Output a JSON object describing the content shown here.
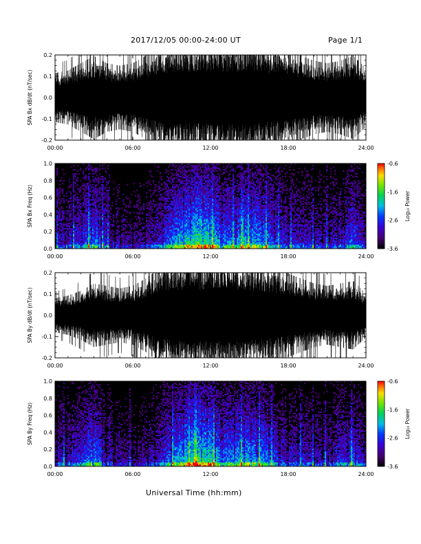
{
  "header": {
    "title": "2017/12/05  00:00-24:00 UT",
    "page": "Page 1/1"
  },
  "xaxis_title": "Universal Time (hh:mm)",
  "colors": {
    "background": "#ffffff",
    "trace": "#000000",
    "spectrogram_background": "#000000"
  },
  "chart_data": [
    {
      "type": "line",
      "ylabel": "SPA Bx dB/dt (nT/sec)",
      "xlim": [
        "00:00",
        "24:00"
      ],
      "ylim": [
        -0.2,
        0.2
      ],
      "x_ticks": [
        "00:00",
        "06:00",
        "12:00",
        "18:00",
        "24:00"
      ],
      "y_ticks": [
        "-0.2",
        "-0.1",
        "0.0",
        "0.1",
        "0.2"
      ],
      "y_tick_values": [
        -0.2,
        -0.1,
        0.0,
        0.1,
        0.2
      ],
      "envelope": {
        "hours": [
          0,
          1,
          2,
          3,
          4,
          5,
          6,
          7,
          8,
          9,
          10,
          11,
          12,
          13,
          14,
          15,
          16,
          17,
          18,
          19,
          20,
          21,
          22,
          23,
          24
        ],
        "amplitude": [
          0.1,
          0.11,
          0.14,
          0.17,
          0.14,
          0.13,
          0.14,
          0.17,
          0.2,
          0.21,
          0.22,
          0.22,
          0.22,
          0.22,
          0.22,
          0.22,
          0.21,
          0.2,
          0.19,
          0.17,
          0.15,
          0.14,
          0.15,
          0.17,
          0.12
        ]
      }
    },
    {
      "type": "heatmap",
      "ylabel": "SPA Bx Freq (Hz)",
      "xlim": [
        "00:00",
        "24:00"
      ],
      "ylim": [
        0.0,
        1.0
      ],
      "x_ticks": [
        "00:00",
        "06:00",
        "12:00",
        "18:00",
        "24:00"
      ],
      "y_ticks": [
        "0.0",
        "0.2",
        "0.4",
        "0.6",
        "0.8",
        "1.0"
      ],
      "y_tick_values": [
        0.0,
        0.2,
        0.4,
        0.6,
        0.8,
        1.0
      ],
      "colorbar": {
        "label": "Log₁₀ Power",
        "range": [
          -3.6,
          -0.6
        ],
        "ticks": [
          "-0.6",
          "-1.6",
          "-2.6",
          "-3.6"
        ],
        "tick_values": [
          -0.6,
          -1.6,
          -2.6,
          -3.6
        ]
      },
      "activity": {
        "hours": [
          0,
          1,
          2,
          3,
          4,
          5,
          6,
          7,
          8,
          9,
          10,
          11,
          12,
          13,
          14,
          15,
          16,
          17,
          18,
          19,
          20,
          21,
          22,
          23,
          24
        ],
        "level": [
          0.45,
          0.5,
          0.55,
          0.75,
          0.5,
          0.4,
          0.35,
          0.4,
          0.5,
          0.7,
          0.85,
          0.95,
          0.9,
          0.7,
          0.7,
          0.8,
          0.75,
          0.6,
          0.5,
          0.5,
          0.45,
          0.45,
          0.5,
          0.65,
          0.4
        ]
      }
    },
    {
      "type": "line",
      "ylabel": "SPA By dB/dt (nT/sec)",
      "xlim": [
        "00:00",
        "24:00"
      ],
      "ylim": [
        -0.2,
        0.2
      ],
      "x_ticks": [
        "00:00",
        "06:00",
        "12:00",
        "18:00",
        "24:00"
      ],
      "y_ticks": [
        "-0.2",
        "-0.1",
        "0.0",
        "0.1",
        "0.2"
      ],
      "y_tick_values": [
        -0.2,
        -0.1,
        0.0,
        0.1,
        0.2
      ],
      "envelope": {
        "hours": [
          0,
          1,
          2,
          3,
          4,
          5,
          6,
          7,
          8,
          9,
          10,
          11,
          12,
          13,
          14,
          15,
          16,
          17,
          18,
          19,
          20,
          21,
          22,
          23,
          24
        ],
        "amplitude": [
          0.07,
          0.08,
          0.1,
          0.13,
          0.12,
          0.11,
          0.12,
          0.15,
          0.19,
          0.21,
          0.22,
          0.22,
          0.22,
          0.22,
          0.22,
          0.21,
          0.2,
          0.19,
          0.17,
          0.15,
          0.13,
          0.12,
          0.13,
          0.14,
          0.09
        ]
      }
    },
    {
      "type": "heatmap",
      "ylabel": "SPA By Freq (Hz)",
      "xlim": [
        "00:00",
        "24:00"
      ],
      "ylim": [
        0.0,
        1.0
      ],
      "x_ticks": [
        "00:00",
        "06:00",
        "12:00",
        "18:00",
        "24:00"
      ],
      "y_ticks": [
        "0.0",
        "0.2",
        "0.4",
        "0.6",
        "0.8",
        "1.0"
      ],
      "y_tick_values": [
        0.0,
        0.2,
        0.4,
        0.6,
        0.8,
        1.0
      ],
      "colorbar": {
        "label": "Log₁₀ Power",
        "range": [
          -3.6,
          -0.6
        ],
        "ticks": [
          "-0.6",
          "-1.6",
          "-2.6",
          "-3.6"
        ],
        "tick_values": [
          -0.6,
          -1.6,
          -2.6,
          -3.6
        ]
      },
      "activity": {
        "hours": [
          0,
          1,
          2,
          3,
          4,
          5,
          6,
          7,
          8,
          9,
          10,
          11,
          12,
          13,
          14,
          15,
          16,
          17,
          18,
          19,
          20,
          21,
          22,
          23,
          24
        ],
        "level": [
          0.45,
          0.5,
          0.55,
          0.75,
          0.5,
          0.4,
          0.35,
          0.4,
          0.5,
          0.7,
          0.85,
          0.95,
          0.9,
          0.7,
          0.75,
          0.8,
          0.75,
          0.6,
          0.5,
          0.5,
          0.45,
          0.45,
          0.55,
          0.65,
          0.4
        ]
      }
    }
  ]
}
